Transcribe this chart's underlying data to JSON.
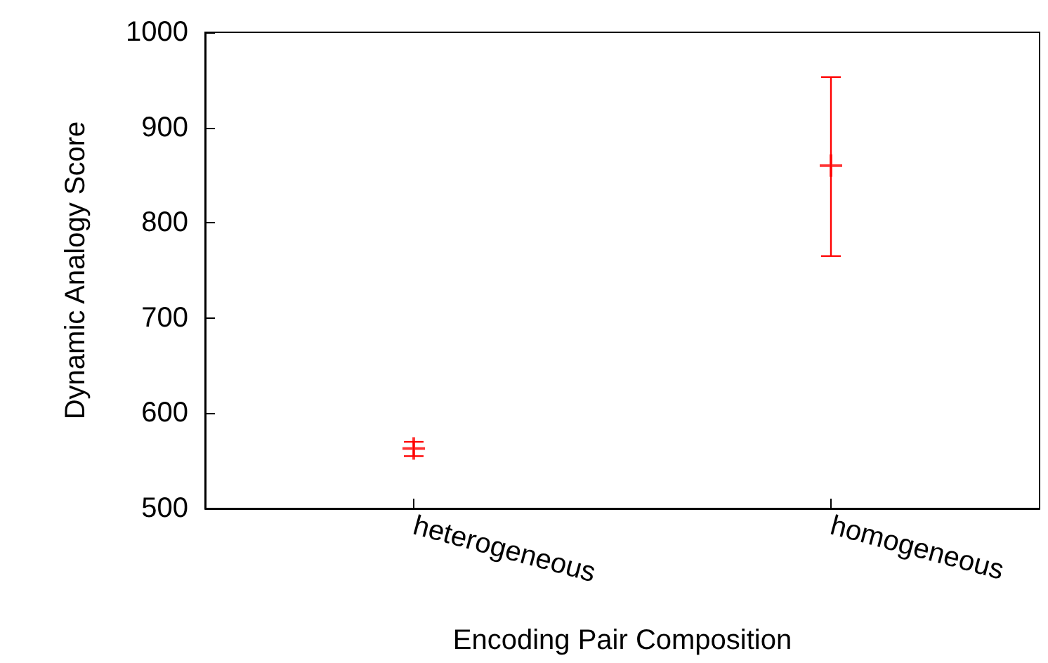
{
  "chart_data": {
    "type": "scatter",
    "xlabel": "Encoding Pair Composition",
    "ylabel": "Dynamic Analogy Score",
    "categories": [
      "heterogeneous",
      "homogeneous"
    ],
    "series": [
      {
        "color": "#ff0000",
        "values": [
          563,
          860
        ],
        "errors": [
          [
            555,
            570
          ],
          [
            765,
            953
          ]
        ]
      }
    ],
    "ylim": [
      500,
      1000
    ],
    "yticks": [
      500,
      600,
      700,
      800,
      900,
      1000
    ],
    "grid": false,
    "marker": "cross"
  }
}
